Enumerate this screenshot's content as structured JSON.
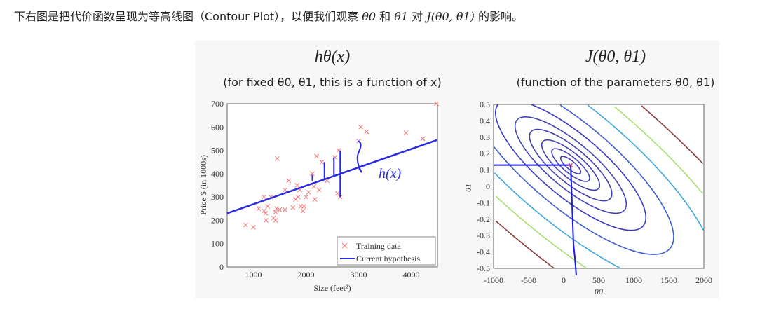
{
  "intro": {
    "text_before": "下右图是把代价函数呈现为等高线图（Contour Plot），以便我们观察 ",
    "theta0": "θ0",
    "and": " 和 ",
    "theta1": "θ1",
    "to": " 对 ",
    "J": "J(θ0, θ1)",
    "text_after": " 的影响。"
  },
  "chart_data": [
    {
      "type": "scatter",
      "title": "hθ(x)",
      "subtitle": "(for fixed θ0, θ1, this is a function of x)",
      "xlabel": "Size (feet²)",
      "ylabel": "Price $ (in 1000s)",
      "xlim": [
        500,
        4500
      ],
      "ylim": [
        0,
        700
      ],
      "xticks": [
        "1000",
        "2000",
        "3000",
        "4000"
      ],
      "yticks": [
        "0",
        "100",
        "200",
        "300",
        "400",
        "500",
        "600",
        "700"
      ],
      "legend": {
        "position": "bottom-right",
        "entries": [
          "Training data",
          "Current hypothesis"
        ]
      },
      "annotation": "h(x)",
      "series": [
        {
          "name": "Training data",
          "color": "#f08080",
          "points": [
            [
              850,
              180
            ],
            [
              1000,
              170
            ],
            [
              1100,
              250
            ],
            [
              1200,
              300
            ],
            [
              1200,
              240
            ],
            [
              1230,
              230
            ],
            [
              1240,
              200
            ],
            [
              1270,
              260
            ],
            [
              1330,
              300
            ],
            [
              1380,
              210
            ],
            [
              1420,
              200
            ],
            [
              1420,
              235
            ],
            [
              1440,
              250
            ],
            [
              1450,
              465
            ],
            [
              1500,
              245
            ],
            [
              1600,
              245
            ],
            [
              1600,
              330
            ],
            [
              1670,
              370
            ],
            [
              1750,
              255
            ],
            [
              1800,
              290
            ],
            [
              1830,
              350
            ],
            [
              1850,
              300
            ],
            [
              1880,
              330
            ],
            [
              1900,
              260
            ],
            [
              1940,
              240
            ],
            [
              1960,
              260
            ],
            [
              2000,
              300
            ],
            [
              2050,
              320
            ],
            [
              2120,
              400
            ],
            [
              2150,
              345
            ],
            [
              2170,
              290
            ],
            [
              2200,
              475
            ],
            [
              2250,
              330
            ],
            [
              2300,
              450
            ],
            [
              2400,
              370
            ],
            [
              2550,
              470
            ],
            [
              2600,
              315
            ],
            [
              2620,
              500
            ],
            [
              2650,
              300
            ],
            [
              3000,
              540
            ],
            [
              3040,
              600
            ],
            [
              3150,
              580
            ],
            [
              3900,
              575
            ],
            [
              4220,
              550
            ],
            [
              4480,
              700
            ]
          ]
        },
        {
          "name": "Current hypothesis",
          "color": "#2a2ae0",
          "line": [
            [
              500,
              230
            ],
            [
              4500,
              545
            ]
          ]
        }
      ]
    },
    {
      "type": "contour",
      "title": "J(θ0, θ1)",
      "subtitle": "(function of the parameters θ0, θ1)",
      "xlabel": "θ0",
      "ylabel": "θ1",
      "xlim": [
        -1000,
        2000
      ],
      "ylim": [
        -0.5,
        0.5
      ],
      "xticks": [
        "-1000",
        "-500",
        "0",
        "500",
        "1000",
        "1500",
        "2000"
      ],
      "yticks": [
        "0.5",
        "0.4",
        "0.3",
        "0.2",
        "0.1",
        "0",
        "-0.1",
        "-0.2",
        "-0.3",
        "-0.4",
        "-0.5"
      ],
      "minimum": [
        100,
        0.13
      ],
      "level_colors": [
        "#4040b0",
        "#4040b0",
        "#4040b0",
        "#4040b0",
        "#4040b0",
        "#3a3ac0",
        "#3f5fd0",
        "#40a8e0",
        "#a8e070",
        "#8b3a3a"
      ]
    }
  ]
}
